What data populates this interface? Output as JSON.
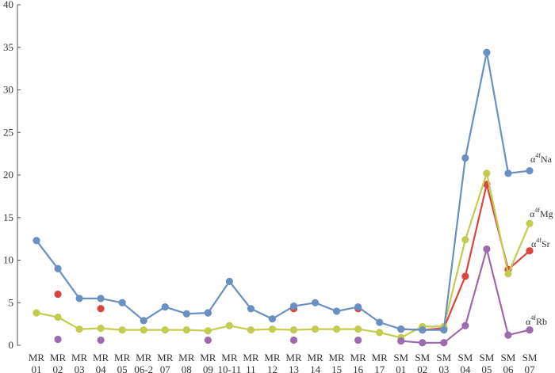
{
  "chart_data": {
    "type": "line",
    "title": "",
    "xlabel": "",
    "ylabel": "",
    "ylim": [
      0,
      40
    ],
    "yticks": [
      0,
      5,
      10,
      15,
      20,
      25,
      30,
      35,
      40
    ],
    "grid": false,
    "legend": "none",
    "categories": [
      [
        "MR",
        "01"
      ],
      [
        "MR",
        "02"
      ],
      [
        "MR",
        "03"
      ],
      [
        "MR",
        "04"
      ],
      [
        "MR",
        "05"
      ],
      [
        "MR",
        "06-2"
      ],
      [
        "MR",
        "07"
      ],
      [
        "MR",
        "08"
      ],
      [
        "MR",
        "09"
      ],
      [
        "MR",
        "10-11"
      ],
      [
        "MR",
        "11"
      ],
      [
        "MR",
        "12"
      ],
      [
        "MR",
        "13"
      ],
      [
        "MR",
        "14"
      ],
      [
        "MR",
        "15"
      ],
      [
        "MR",
        "16"
      ],
      [
        "MR",
        "17"
      ],
      [
        "SM",
        "01"
      ],
      [
        "SM",
        "02"
      ],
      [
        "SM",
        "03"
      ],
      [
        "SM",
        "04"
      ],
      [
        "SM",
        "05"
      ],
      [
        "SM",
        "06"
      ],
      [
        "SM",
        "07"
      ]
    ],
    "series": [
      {
        "name": "Na",
        "label_prefix": "α",
        "label_sup": "4f",
        "color": "#6a8fc3",
        "values": [
          12.3,
          9.0,
          5.5,
          5.5,
          5.0,
          2.9,
          4.5,
          3.7,
          3.8,
          7.5,
          4.3,
          3.1,
          4.6,
          5.0,
          4.0,
          4.5,
          2.7,
          1.9,
          1.8,
          1.8,
          22.0,
          34.4,
          20.2,
          20.5
        ]
      },
      {
        "name": "Mg",
        "label_prefix": "α",
        "label_sup": "4f",
        "color": "#c3cc4f",
        "values": [
          3.8,
          3.3,
          1.9,
          2.0,
          1.8,
          1.8,
          1.8,
          1.8,
          1.7,
          2.3,
          1.8,
          1.9,
          1.8,
          1.9,
          1.9,
          1.9,
          1.5,
          0.9,
          2.2,
          2.2,
          12.4,
          20.2,
          8.4,
          14.3
        ]
      },
      {
        "name": "Sr",
        "label_prefix": "α",
        "label_sup": "4f",
        "color": "#d9463f",
        "values": [
          null,
          6.0,
          null,
          4.3,
          null,
          null,
          null,
          null,
          3.8,
          null,
          null,
          null,
          4.3,
          null,
          null,
          4.3,
          null,
          1.9,
          1.8,
          2.0,
          8.1,
          18.9,
          8.9,
          11.1
        ]
      },
      {
        "name": "Rb",
        "label_prefix": "α",
        "label_sup": "4f",
        "color": "#9b6bab",
        "values": [
          null,
          0.7,
          null,
          0.6,
          null,
          null,
          null,
          null,
          0.6,
          null,
          null,
          null,
          0.6,
          null,
          null,
          0.6,
          null,
          0.5,
          0.3,
          0.3,
          2.3,
          11.3,
          1.2,
          1.8
        ]
      }
    ]
  }
}
